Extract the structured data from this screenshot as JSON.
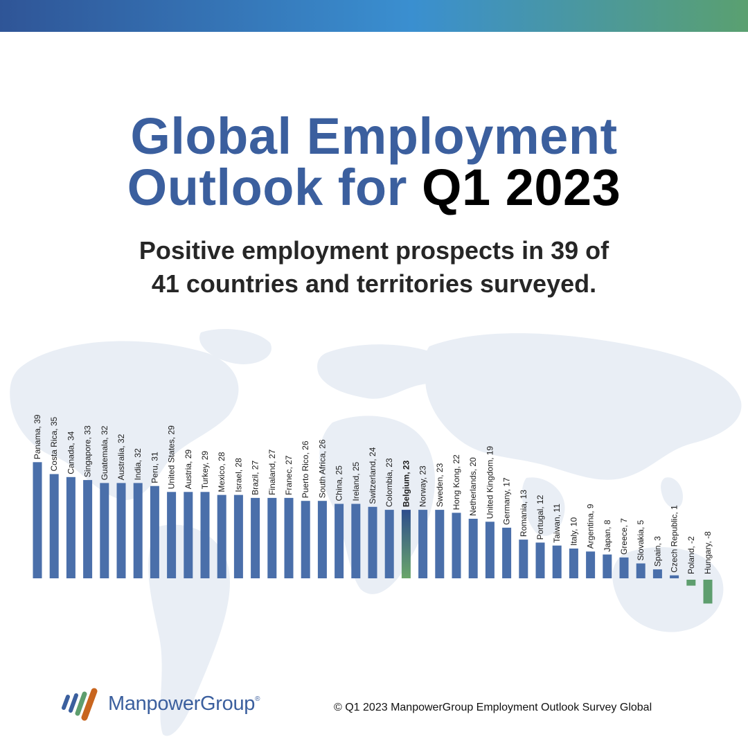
{
  "header": {
    "title_line1": "Global Employment",
    "title_line2_blue": "Outlook for ",
    "title_line2_black": "Q1 2023",
    "subtitle_line1": "Positive employment prospects in 39 of",
    "subtitle_line2": "41 countries and territories surveyed."
  },
  "colors": {
    "positive": "#4a6faa",
    "negative": "#5e9e6e",
    "highlight_top": "#2e4d8c",
    "highlight_bottom": "#6aa66a"
  },
  "chart_data": {
    "type": "bar",
    "categories": [
      "Panama",
      "Costa Rica",
      "Canada",
      "Singapore",
      "Guatemala",
      "Australia",
      "India",
      "Peru",
      "United States",
      "Austria",
      "Turkey",
      "Mexico",
      "Israel",
      "Brazil",
      "Finaland",
      "Franec",
      "Puerto Rico",
      "South Africa",
      "China",
      "Ireland",
      "Switzerland",
      "Colombia",
      "Belgium",
      "Norway",
      "Sweden",
      "Hong Kong",
      "Netherlands",
      "United Kingdom",
      "Germany",
      "Romania",
      "Portugal",
      "Taiwan",
      "Italy",
      "Argentina",
      "Japan",
      "Greece",
      "Slovakia",
      "Spain",
      "Czech Republic",
      "Poland",
      "Hungary"
    ],
    "values": [
      39,
      35,
      34,
      33,
      32,
      32,
      32,
      31,
      29,
      29,
      29,
      28,
      28,
      27,
      27,
      27,
      26,
      26,
      25,
      25,
      24,
      23,
      23,
      23,
      23,
      22,
      20,
      19,
      17,
      13,
      12,
      11,
      10,
      9,
      8,
      7,
      5,
      3,
      1,
      -2,
      -8
    ],
    "labels": [
      "Panama, 39",
      "Costa Rica, 35",
      "Canada, 34",
      "Singapore, 33",
      "Guatemala, 32",
      "Australia, 32",
      "India, 32",
      "Peru, 31",
      "United States, 29",
      "Austria, 29",
      "Turkey, 29",
      "Mexico, 28",
      "Israel, 28",
      "Brazil, 27",
      "Finaland, 27",
      "Franec, 27",
      "Puerto Rico, 26",
      "South Africa, 26",
      "China, 25",
      "Ireland, 25",
      "Switzerland, 24",
      "Colombia, 23",
      "Belgium, 23",
      "Norway, 23",
      "Sweden, 23",
      "Hong Kong, 22",
      "Netherlands, 20",
      "United Kingdom, 19",
      "Germany, 17",
      "Romania, 13",
      "Portugal, 12",
      "Taiwan, 11",
      "Italy, 10",
      "Argentina, 9",
      "Japan, 8",
      "Greece, 7",
      "Slovakia, 5",
      "Spain, 3",
      "Czech Republic, 1",
      "Poland, -2",
      "Hungary, -8"
    ],
    "highlight": "Belgium",
    "title": "",
    "xlabel": "",
    "ylabel": "",
    "ylim": [
      -8,
      39
    ],
    "grid": false,
    "legend": "none"
  },
  "footer": {
    "brand": "ManpowerGroup",
    "registered_mark": "®",
    "copyright": "© Q1 2023 ManpowerGroup Employment Outlook Survey Global"
  }
}
